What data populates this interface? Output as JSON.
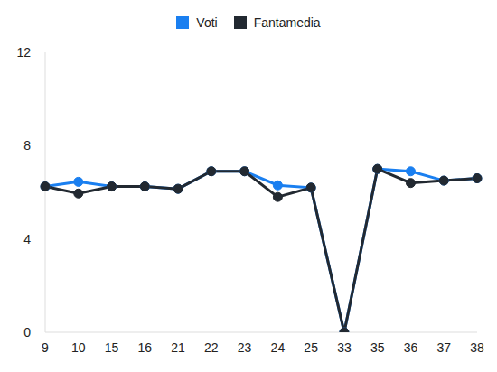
{
  "chart_data": {
    "type": "line",
    "categories": [
      "9",
      "10",
      "15",
      "16",
      "21",
      "22",
      "23",
      "24",
      "25",
      "33",
      "35",
      "36",
      "37",
      "38"
    ],
    "series": [
      {
        "name": "Voti",
        "color": "#1a7ff0",
        "values": [
          6.25,
          6.45,
          6.25,
          6.25,
          6.15,
          6.9,
          6.9,
          6.3,
          6.2,
          0,
          7.0,
          6.9,
          6.5,
          6.6
        ],
        "marker": "circle"
      },
      {
        "name": "Fantamedia",
        "color": "#222931",
        "values": [
          6.25,
          5.95,
          6.25,
          6.25,
          6.15,
          6.9,
          6.9,
          5.8,
          6.2,
          0,
          7.0,
          6.4,
          6.5,
          6.6
        ],
        "marker": "circle"
      }
    ],
    "ylim": [
      0,
      12
    ],
    "yticks": [
      0,
      4,
      8,
      12
    ],
    "grid": false,
    "legend": "top"
  }
}
